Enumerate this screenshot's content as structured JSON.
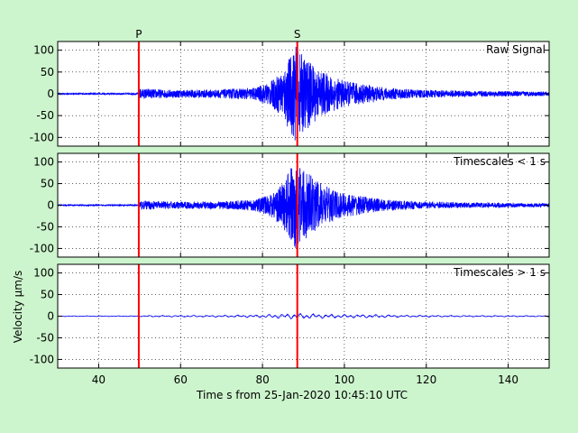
{
  "chart_data": {
    "type": "line",
    "xlabel": "Time s from 25-Jan-2020 10:45:10 UTC",
    "ylabel": "Velocity μm/s",
    "xlim": [
      30,
      150
    ],
    "xticks": [
      40,
      60,
      80,
      100,
      120,
      140
    ],
    "ylim": [
      -120,
      120
    ],
    "yticks": [
      100,
      50,
      0,
      -50,
      -100
    ],
    "grid": true,
    "colors": {
      "trace": "#0000ff",
      "pick": "#ff0000",
      "background": "#cdf5cd",
      "axes_bg": "#ffffff"
    },
    "phase_picks": [
      {
        "label": "P",
        "time": 49.8
      },
      {
        "label": "S",
        "time": 88.5
      }
    ],
    "panels": [
      {
        "name": "Raw Signal",
        "envelope": [
          [
            30,
            1.5
          ],
          [
            49.5,
            1.5
          ],
          [
            50,
            12
          ],
          [
            55,
            10
          ],
          [
            60,
            9
          ],
          [
            70,
            10
          ],
          [
            78,
            14
          ],
          [
            82,
            28
          ],
          [
            85,
            55
          ],
          [
            86.5,
            85
          ],
          [
            88,
            110
          ],
          [
            89,
            95
          ],
          [
            91,
            80
          ],
          [
            93,
            62
          ],
          [
            96,
            45
          ],
          [
            100,
            30
          ],
          [
            105,
            22
          ],
          [
            110,
            14
          ],
          [
            120,
            9
          ],
          [
            130,
            7
          ],
          [
            140,
            6
          ],
          [
            150,
            5
          ]
        ]
      },
      {
        "name": "Timescales < 1 s",
        "envelope": [
          [
            30,
            1.2
          ],
          [
            49.5,
            1.2
          ],
          [
            50,
            11
          ],
          [
            55,
            9
          ],
          [
            60,
            8
          ],
          [
            70,
            9
          ],
          [
            78,
            13
          ],
          [
            82,
            26
          ],
          [
            85,
            52
          ],
          [
            86.5,
            82
          ],
          [
            88,
            105
          ],
          [
            89,
            92
          ],
          [
            91,
            76
          ],
          [
            93,
            60
          ],
          [
            96,
            42
          ],
          [
            100,
            28
          ],
          [
            105,
            20
          ],
          [
            110,
            13
          ],
          [
            120,
            8
          ],
          [
            130,
            6
          ],
          [
            140,
            5
          ],
          [
            150,
            4
          ]
        ]
      },
      {
        "name": "Timescales > 1 s",
        "envelope": [
          [
            30,
            0.8
          ],
          [
            49.5,
            0.8
          ],
          [
            52,
            1.6
          ],
          [
            60,
            1.8
          ],
          [
            70,
            2
          ],
          [
            80,
            3
          ],
          [
            85,
            5
          ],
          [
            88,
            6
          ],
          [
            92,
            5
          ],
          [
            100,
            3.5
          ],
          [
            107,
            3.5
          ],
          [
            115,
            2
          ],
          [
            130,
            1.5
          ],
          [
            150,
            1.2
          ]
        ]
      }
    ]
  }
}
